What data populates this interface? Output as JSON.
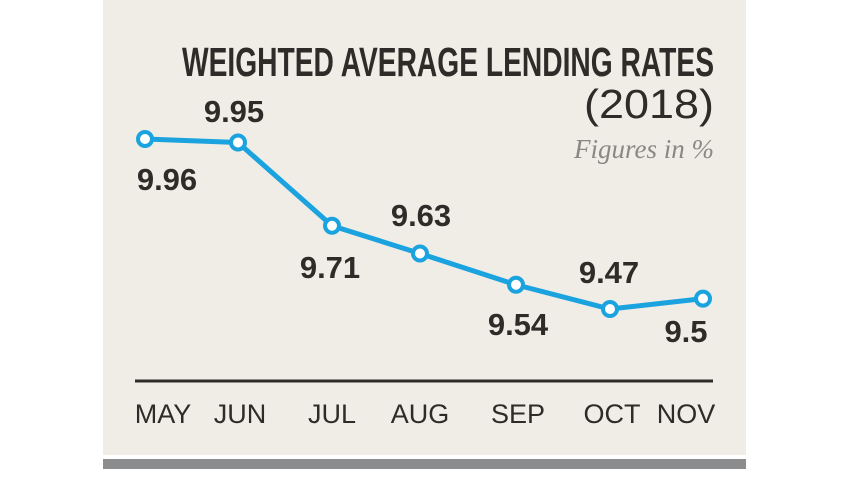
{
  "chart_data": {
    "type": "line",
    "title": "WEIGHTED AVERAGE LENDING RATES",
    "title_year": "(2018)",
    "subtitle": "Figures in %",
    "categories": [
      "MAY",
      "JUN",
      "JUL",
      "AUG",
      "SEP",
      "OCT",
      "NOV"
    ],
    "values": [
      9.96,
      9.95,
      9.71,
      9.63,
      9.54,
      9.47,
      9.5
    ],
    "data_labels": [
      "9.96",
      "9.95",
      "9.71",
      "9.63",
      "9.54",
      "9.47",
      "9.5"
    ],
    "xlabel": "",
    "ylabel": "",
    "grid": false,
    "colors": {
      "line": "#1aa3df",
      "background": "#f0ede6",
      "text": "#2e2b28",
      "footer_bar": "#8a8c8e"
    }
  }
}
